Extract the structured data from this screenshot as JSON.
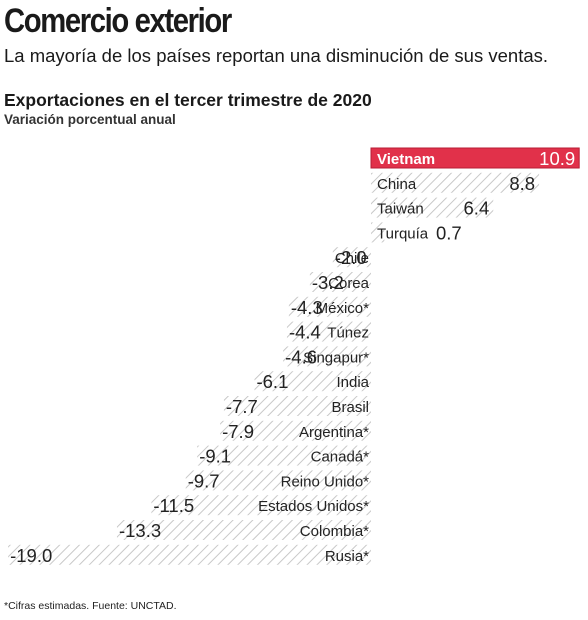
{
  "header": {
    "headline": "Comercio exterior",
    "subheadline": "La mayoría de los países reportan una disminución de sus ventas."
  },
  "chart_data": {
    "type": "bar",
    "orientation": "horizontal",
    "title": "Exportaciones en el tercer trimestre de 2020",
    "subtitle": "Variación porcentual anual",
    "categories": [
      "Vietnam",
      "China",
      "Taiwán",
      "Turquía",
      "Chile",
      "Corea",
      "México*",
      "Túnez",
      "Singapur*",
      "India",
      "Brasil",
      "Argentina*",
      "Canadá*",
      "Reino Unido*",
      "Estados Unidos*",
      "Colombia*",
      "Rusia*"
    ],
    "values": [
      10.9,
      8.8,
      6.4,
      0.7,
      -2.0,
      -3.2,
      -4.3,
      -4.4,
      -4.6,
      -6.1,
      -7.7,
      -7.9,
      -9.1,
      -9.7,
      -11.5,
      -13.3,
      -19.0
    ],
    "value_labels": [
      "10.9",
      "8.8",
      "6.4",
      "0.7",
      "-2.0",
      "-3.2",
      "-4.3",
      "-4.4",
      "-4.6",
      "-6.1",
      "-7.7",
      "-7.9",
      "-9.1",
      "-9.7",
      "-11.5",
      "-13.3",
      "-19.0"
    ],
    "highlight_category": "Vietnam",
    "colors": {
      "highlight_fill": "#e1314a",
      "highlight_border": "#b81d35",
      "hatch_line": "#c8c8c8",
      "hatch_background": "#ffffff",
      "text": "#222222"
    },
    "bar_pattern": "diagonal-hatch",
    "xlim": [
      -19.0,
      10.9
    ],
    "grid": false,
    "legend": "none"
  },
  "footnote": "*Cifras estimadas. Fuente: UNCTAD."
}
